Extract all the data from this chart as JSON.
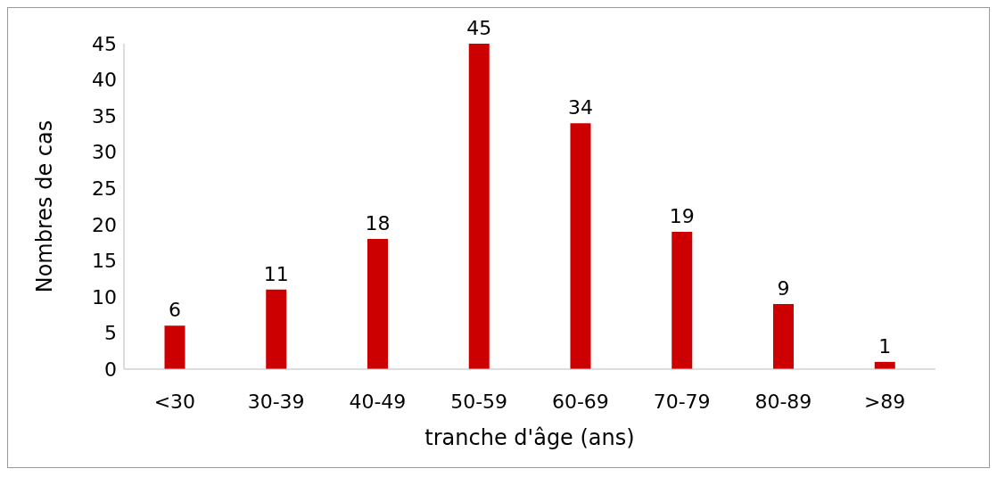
{
  "chart_data": {
    "type": "bar",
    "xlabel": "tranche d'âge (ans)",
    "ylabel": "Nombres de cas",
    "categories": [
      "<30",
      "30-39",
      "40-49",
      "50-59",
      "60-69",
      "70-79",
      "80-89",
      ">89"
    ],
    "values": [
      6,
      11,
      18,
      45,
      34,
      19,
      9,
      1
    ],
    "color": "#cc0000",
    "ylim": [
      0,
      45
    ],
    "yticks": [
      0,
      5,
      10,
      15,
      20,
      25,
      30,
      35,
      40,
      45
    ],
    "grid": false,
    "legend": false,
    "data_labels": true
  }
}
